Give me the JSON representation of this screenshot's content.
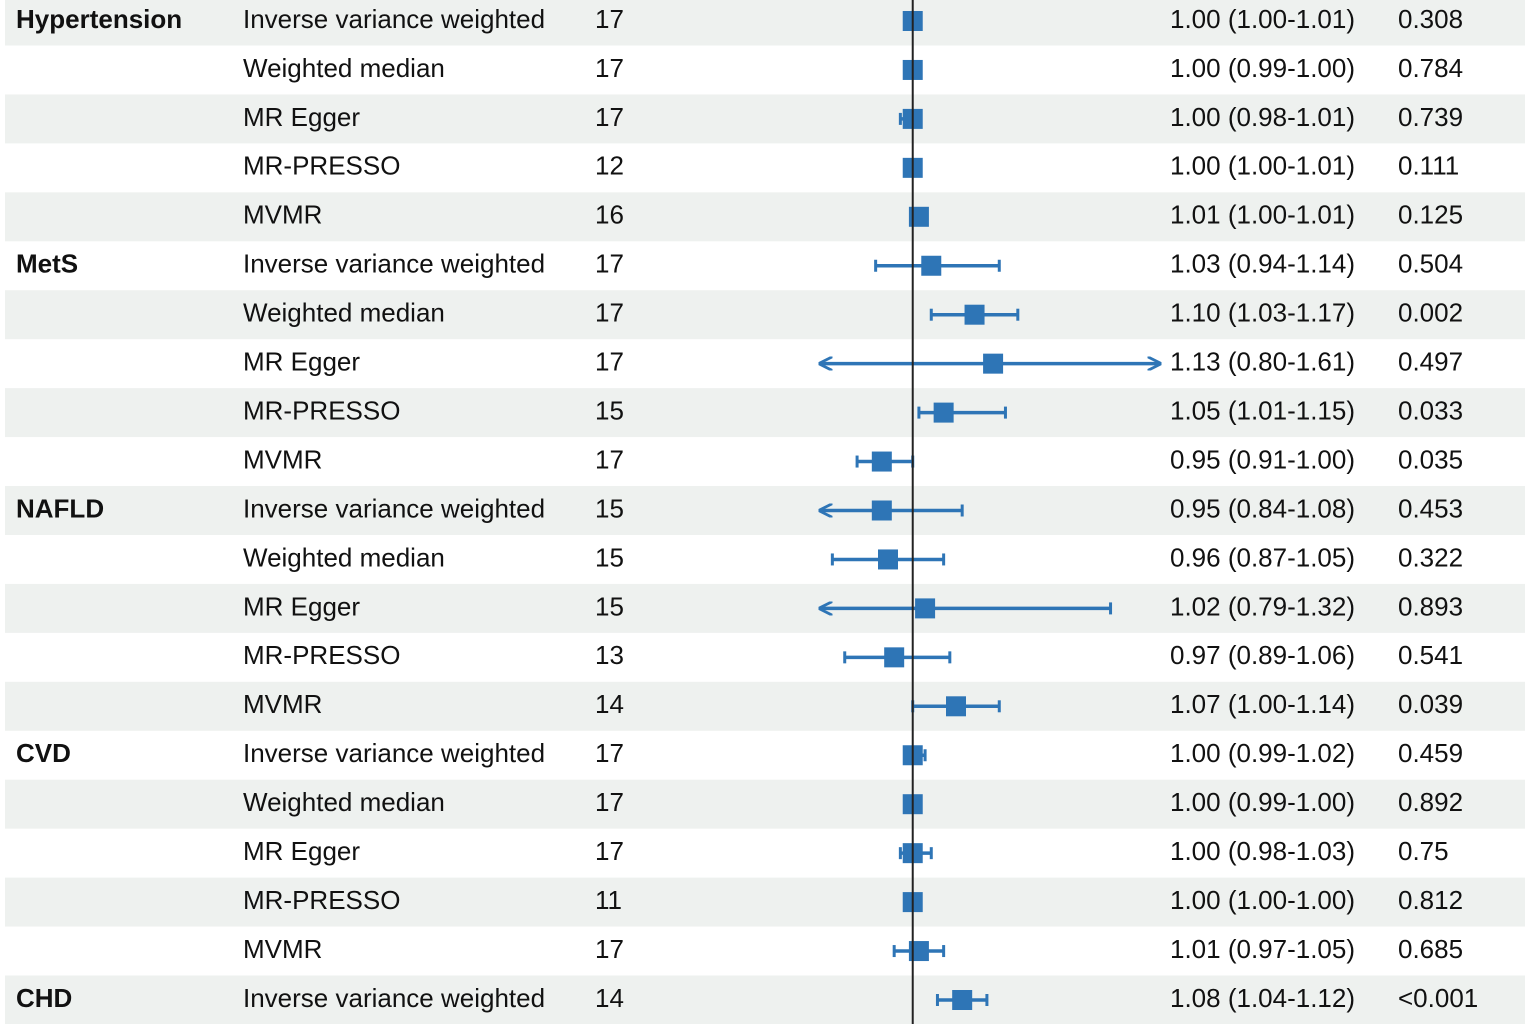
{
  "chart_data": {
    "type": "forest",
    "color": "#2e75b6",
    "reference": 1,
    "xlim": [
      0.85,
      1.4
    ],
    "groups": [
      {
        "name": "Hypertension",
        "methods": [
          "Inverse variance weighted",
          "Weighted median",
          "MR Egger",
          "MR-PRESSO",
          "MVMR"
        ],
        "snps": [
          17,
          17,
          17,
          12,
          16
        ],
        "estimates": [
          1.0,
          1.0,
          1.0,
          1.0,
          1.01
        ],
        "lower": [
          1.0,
          0.99,
          0.98,
          1.0,
          1.0
        ],
        "upper": [
          1.01,
          1.0,
          1.01,
          1.01,
          1.01
        ],
        "value_labels": [
          "1.00 (1.00-1.01)",
          "1.00 (0.99-1.00)",
          "1.00 (0.98-1.01)",
          "1.00 (1.00-1.01)",
          "1.01 (1.00-1.01)"
        ],
        "p_values": [
          "0.308",
          "0.784",
          "0.739",
          "0.111",
          "0.125"
        ]
      },
      {
        "name": "MetS",
        "methods": [
          "Inverse variance weighted",
          "Weighted median",
          "MR Egger",
          "MR-PRESSO",
          "MVMR"
        ],
        "snps": [
          17,
          17,
          17,
          15,
          17
        ],
        "estimates": [
          1.03,
          1.1,
          1.13,
          1.05,
          0.95
        ],
        "lower": [
          0.94,
          1.03,
          0.8,
          1.01,
          0.91
        ],
        "upper": [
          1.14,
          1.17,
          1.61,
          1.15,
          1.0
        ],
        "value_labels": [
          "1.03 (0.94-1.14)",
          "1.10 (1.03-1.17)",
          "1.13 (0.80-1.61)",
          "1.05 (1.01-1.15)",
          "0.95 (0.91-1.00)"
        ],
        "p_values": [
          "0.504",
          "0.002",
          "0.497",
          "0.033",
          "0.035"
        ]
      },
      {
        "name": "NAFLD",
        "methods": [
          "Inverse variance weighted",
          "Weighted median",
          "MR Egger",
          "MR-PRESSO",
          "MVMR"
        ],
        "snps": [
          15,
          15,
          15,
          13,
          14
        ],
        "estimates": [
          0.95,
          0.96,
          1.02,
          0.97,
          1.07
        ],
        "lower": [
          0.84,
          0.87,
          0.79,
          0.89,
          1.0
        ],
        "upper": [
          1.08,
          1.05,
          1.32,
          1.06,
          1.14
        ],
        "value_labels": [
          "0.95 (0.84-1.08)",
          "0.96 (0.87-1.05)",
          "1.02 (0.79-1.32)",
          "0.97 (0.89-1.06)",
          "1.07 (1.00-1.14)"
        ],
        "p_values": [
          "0.453",
          "0.322",
          "0.893",
          "0.541",
          "0.039"
        ]
      },
      {
        "name": "CVD",
        "methods": [
          "Inverse variance weighted",
          "Weighted median",
          "MR Egger",
          "MR-PRESSO",
          "MVMR"
        ],
        "snps": [
          17,
          17,
          17,
          11,
          17
        ],
        "estimates": [
          1.0,
          1.0,
          1.0,
          1.0,
          1.01
        ],
        "lower": [
          0.99,
          0.99,
          0.98,
          1.0,
          0.97
        ],
        "upper": [
          1.02,
          1.0,
          1.03,
          1.0,
          1.05
        ],
        "value_labels": [
          "1.00 (0.99-1.02)",
          "1.00 (0.99-1.00)",
          "1.00 (0.98-1.03)",
          "1.00 (1.00-1.00)",
          "1.01 (0.97-1.05)"
        ],
        "p_values": [
          "0.459",
          "0.892",
          "0.75",
          "0.812",
          "0.685"
        ]
      },
      {
        "name": "CHD",
        "methods": [
          "Inverse variance weighted"
        ],
        "snps": [
          14
        ],
        "estimates": [
          1.08
        ],
        "lower": [
          1.04
        ],
        "upper": [
          1.12
        ],
        "value_labels": [
          "1.08 (1.04-1.12)"
        ],
        "p_values": [
          "<0.001"
        ]
      }
    ]
  }
}
